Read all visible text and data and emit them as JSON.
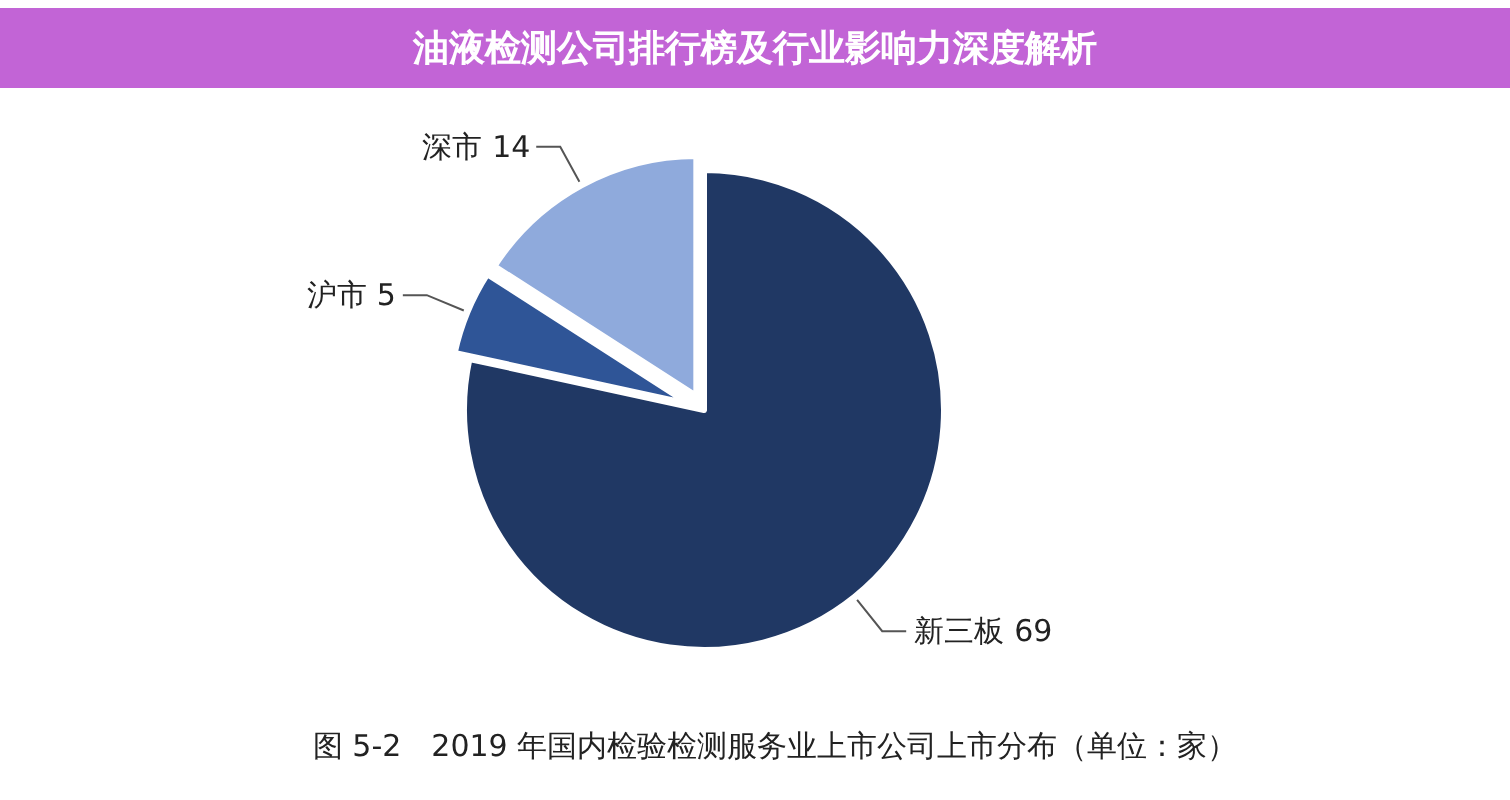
{
  "chart_data": {
    "type": "pie",
    "title": "油液检测公司排行榜及行业影响力深度解析",
    "annotations": [
      "图 5-2　2019 年国内检验检测服务业上市公司上市分布（单位：家）"
    ],
    "categories": [
      "新三板",
      "沪市",
      "深市"
    ],
    "values": [
      69,
      5,
      14
    ],
    "colors": [
      "#203864",
      "#2f5597",
      "#8faadc"
    ],
    "data_labels": true
  }
}
